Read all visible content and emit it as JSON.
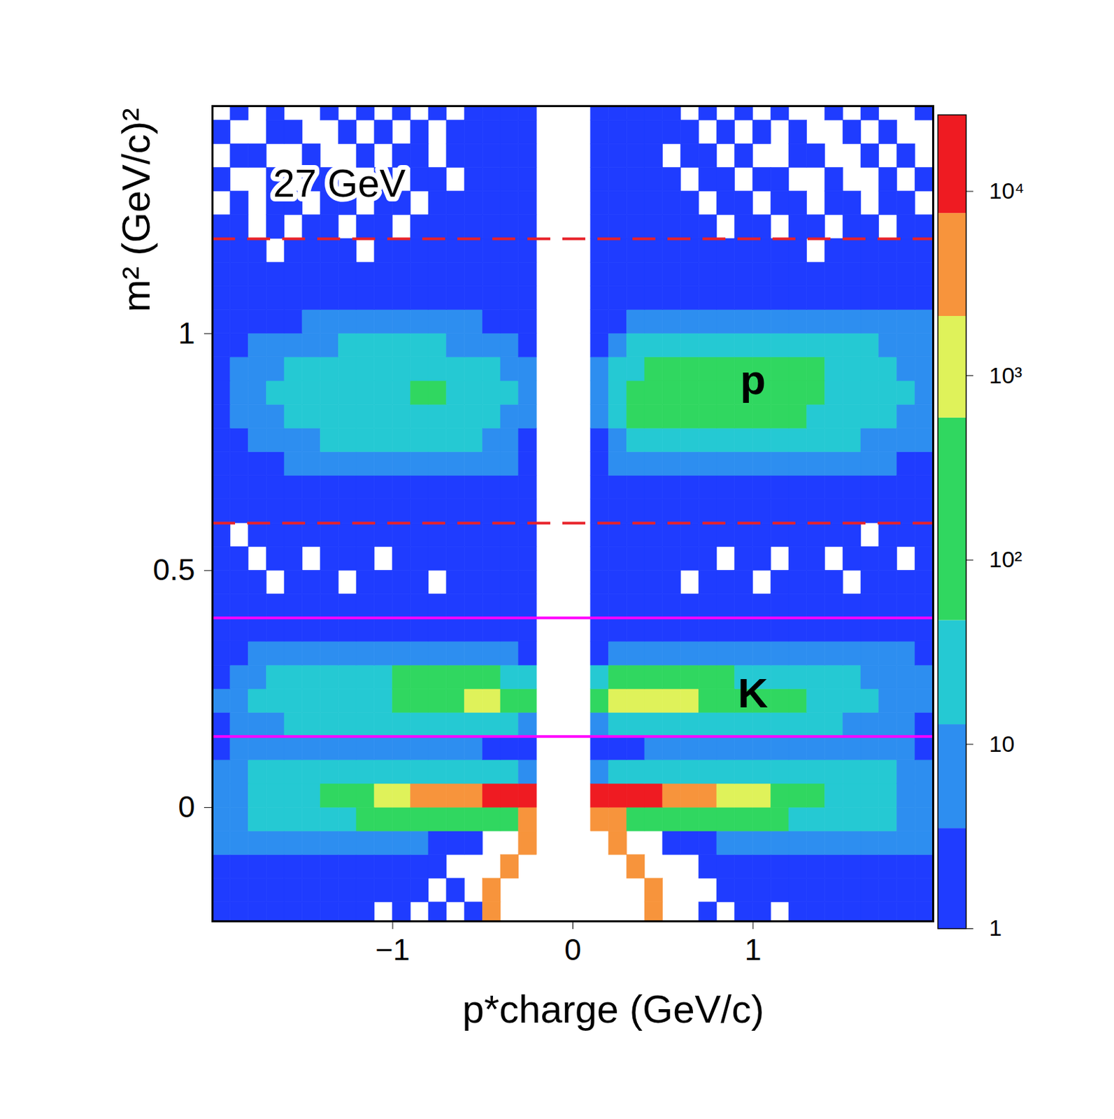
{
  "chart_data": {
    "type": "heatmap",
    "title": "27 GeV",
    "x_label": "p*charge (GeV/c)",
    "y_label": "m² (GeV/c)²",
    "xlim": [
      -2,
      2
    ],
    "xticks": [
      {
        "value": -1,
        "label": "−1"
      },
      0,
      1
    ],
    "ylim": [
      -0.24,
      1.48
    ],
    "yticks": [
      0,
      0.5,
      1
    ],
    "x_bins": [
      -2,
      -1.9,
      -1.8,
      -1.7,
      -1.6,
      -1.5,
      -1.4,
      -1.3,
      -1.2,
      -1.1,
      -1,
      -0.9,
      -0.8,
      -0.7,
      -0.6,
      -0.5,
      -0.4,
      -0.3,
      -0.2,
      -0.1,
      0,
      0.1,
      0.2,
      0.3,
      0.4,
      0.5,
      0.6,
      0.7,
      0.8,
      0.9,
      1,
      1.1,
      1.2,
      1.3,
      1.4,
      1.5,
      1.6,
      1.7,
      1.8,
      1.9,
      2
    ],
    "y_bins": [
      -0.25,
      -0.2,
      -0.15,
      -0.1,
      -0.05,
      0,
      0.05,
      0.1,
      0.15,
      0.2,
      0.25,
      0.3,
      0.35,
      0.4,
      0.45,
      0.5,
      0.55,
      0.6,
      0.65,
      0.7,
      0.75,
      0.8,
      0.85,
      0.9,
      0.95,
      1,
      1.05,
      1.1,
      1.15,
      1.2,
      1.25,
      1.3,
      1.35,
      1.4,
      1.45,
      1.5
    ],
    "counts": [
      [
        1,
        1,
        2,
        1,
        1,
        2,
        1,
        1,
        1,
        0,
        1,
        0,
        1,
        0,
        1,
        2500,
        0,
        0,
        0,
        0,
        0,
        0,
        0,
        0,
        2500,
        0,
        0,
        1,
        0,
        1,
        1,
        0,
        1,
        1,
        1,
        2,
        1,
        1,
        2,
        1
      ],
      [
        1,
        2,
        1,
        2,
        2,
        1,
        2,
        1,
        1,
        1,
        1,
        1,
        0,
        1,
        0,
        2500,
        0,
        0,
        0,
        0,
        0,
        0,
        0,
        0,
        2500,
        0,
        0,
        0,
        1,
        1,
        1,
        1,
        2,
        1,
        2,
        1,
        2,
        2,
        1,
        2
      ],
      [
        2,
        2,
        3,
        3,
        3,
        3,
        2,
        2,
        2,
        2,
        1,
        1,
        1,
        0,
        0,
        0,
        2500,
        0,
        0,
        0,
        0,
        0,
        0,
        2500,
        0,
        0,
        0,
        1,
        1,
        1,
        2,
        2,
        2,
        2,
        3,
        3,
        3,
        2,
        2,
        2
      ],
      [
        4,
        5,
        6,
        7,
        7,
        8,
        8,
        8,
        7,
        6,
        5,
        4,
        3,
        2,
        1,
        0,
        0,
        2500,
        0,
        0,
        0,
        0,
        2500,
        0,
        0,
        1,
        2,
        3,
        4,
        5,
        6,
        7,
        8,
        8,
        8,
        7,
        7,
        6,
        5,
        4
      ],
      [
        6,
        10,
        15,
        20,
        25,
        30,
        40,
        45,
        50,
        55,
        60,
        70,
        80,
        100,
        120,
        150,
        200,
        3000,
        0,
        0,
        0,
        3000,
        3000,
        200,
        150,
        120,
        100,
        80,
        70,
        60,
        55,
        50,
        45,
        40,
        30,
        25,
        20,
        15,
        10,
        6
      ],
      [
        8,
        12,
        18,
        25,
        35,
        45,
        80,
        200,
        400,
        800,
        1500,
        2500,
        3500,
        5000,
        7000,
        12000,
        16000,
        18000,
        0,
        0,
        0,
        18000,
        17000,
        14000,
        10000,
        7000,
        5000,
        3500,
        2000,
        1500,
        1000,
        500,
        300,
        150,
        45,
        35,
        25,
        18,
        12,
        8
      ],
      [
        8,
        12,
        18,
        24,
        30,
        35,
        40,
        45,
        45,
        45,
        40,
        38,
        35,
        30,
        25,
        20,
        15,
        10,
        0,
        0,
        0,
        10,
        15,
        20,
        25,
        30,
        35,
        40,
        45,
        45,
        45,
        45,
        40,
        35,
        30,
        25,
        20,
        15,
        12,
        8
      ],
      [
        3,
        4,
        5,
        6,
        6,
        7,
        7,
        7,
        6,
        6,
        6,
        5,
        5,
        4,
        4,
        3,
        3,
        2,
        0,
        0,
        0,
        2,
        3,
        3,
        4,
        4,
        5,
        5,
        6,
        6,
        6,
        7,
        7,
        7,
        7,
        6,
        6,
        5,
        4,
        3
      ],
      [
        3,
        5,
        8,
        12,
        16,
        20,
        24,
        28,
        30,
        32,
        34,
        34,
        34,
        32,
        30,
        28,
        24,
        12,
        0,
        0,
        0,
        12,
        28,
        30,
        32,
        34,
        34,
        34,
        32,
        30,
        28,
        26,
        22,
        18,
        15,
        12,
        9,
        7,
        5,
        3
      ],
      [
        4,
        8,
        14,
        20,
        26,
        32,
        36,
        40,
        42,
        45,
        55,
        160,
        200,
        250,
        700,
        900,
        500,
        300,
        0,
        0,
        0,
        400,
        1000,
        900,
        800,
        700,
        600,
        300,
        250,
        200,
        160,
        120,
        60,
        40,
        30,
        22,
        16,
        12,
        8,
        5
      ],
      [
        3,
        6,
        10,
        16,
        22,
        28,
        30,
        35,
        40,
        45,
        50,
        60,
        70,
        80,
        80,
        60,
        40,
        30,
        0,
        0,
        0,
        30,
        80,
        80,
        75,
        70,
        60,
        55,
        50,
        45,
        40,
        35,
        28,
        22,
        18,
        14,
        10,
        7,
        5,
        4
      ],
      [
        2,
        3,
        4,
        5,
        5,
        6,
        6,
        6,
        6,
        6,
        6,
        6,
        6,
        6,
        5,
        5,
        4,
        3,
        0,
        0,
        0,
        3,
        4,
        5,
        6,
        6,
        6,
        6,
        6,
        6,
        6,
        6,
        6,
        6,
        6,
        6,
        5,
        5,
        4,
        3
      ],
      [
        1,
        2,
        2,
        2,
        2,
        2,
        2,
        2,
        2,
        2,
        2,
        2,
        2,
        2,
        2,
        2,
        2,
        2,
        0,
        0,
        0,
        2,
        2,
        2,
        2,
        2,
        2,
        2,
        2,
        2,
        2,
        2,
        2,
        2,
        2,
        2,
        2,
        2,
        2,
        2
      ],
      [
        1,
        1,
        1,
        1,
        1,
        1,
        1,
        1,
        1,
        1,
        1,
        1,
        1,
        1,
        2,
        2,
        2,
        2,
        0,
        0,
        0,
        2,
        2,
        2,
        2,
        1,
        1,
        1,
        1,
        1,
        1,
        1,
        1,
        1,
        1,
        1,
        1,
        1,
        1,
        1
      ],
      [
        1,
        1,
        1,
        0,
        1,
        1,
        1,
        0,
        1,
        1,
        1,
        1,
        0,
        1,
        1,
        2,
        2,
        2,
        0,
        0,
        0,
        2,
        2,
        2,
        1,
        1,
        0,
        1,
        1,
        1,
        0,
        1,
        1,
        1,
        1,
        0,
        1,
        1,
        1,
        1
      ],
      [
        1,
        1,
        0,
        1,
        1,
        0,
        1,
        1,
        1,
        0,
        1,
        1,
        1,
        1,
        1,
        2,
        2,
        2,
        0,
        0,
        0,
        2,
        2,
        2,
        1,
        1,
        1,
        1,
        0,
        1,
        1,
        0,
        1,
        1,
        0,
        1,
        1,
        1,
        0,
        1
      ],
      [
        1,
        0,
        1,
        1,
        1,
        1,
        1,
        1,
        1,
        1,
        1,
        1,
        1,
        1,
        2,
        2,
        2,
        2,
        0,
        0,
        0,
        2,
        2,
        2,
        2,
        1,
        1,
        1,
        1,
        1,
        1,
        1,
        1,
        1,
        1,
        1,
        0,
        1,
        1,
        1
      ],
      [
        1,
        1,
        1,
        1,
        2,
        1,
        1,
        2,
        1,
        1,
        2,
        1,
        2,
        1,
        2,
        2,
        2,
        2,
        0,
        0,
        0,
        2,
        2,
        2,
        2,
        1,
        2,
        1,
        2,
        1,
        2,
        1,
        2,
        1,
        1,
        2,
        1,
        1,
        2,
        1
      ],
      [
        1,
        1,
        2,
        2,
        2,
        2,
        2,
        2,
        2,
        2,
        2,
        2,
        2,
        2,
        2,
        2,
        2,
        2,
        0,
        0,
        0,
        2,
        2,
        2,
        2,
        2,
        2,
        3,
        2,
        2,
        2,
        2,
        2,
        2,
        2,
        2,
        2,
        2,
        2,
        1
      ],
      [
        2,
        2,
        3,
        3,
        4,
        5,
        5,
        6,
        6,
        6,
        7,
        7,
        6,
        6,
        5,
        5,
        4,
        2,
        0,
        0,
        0,
        2,
        4,
        7,
        8,
        8,
        9,
        9,
        9,
        8,
        8,
        7,
        7,
        6,
        6,
        5,
        5,
        4,
        3,
        3
      ],
      [
        2,
        3,
        5,
        7,
        9,
        12,
        14,
        16,
        18,
        18,
        20,
        20,
        18,
        16,
        13,
        10,
        7,
        3,
        0,
        0,
        0,
        3,
        10,
        20,
        25,
        30,
        32,
        32,
        32,
        30,
        28,
        25,
        22,
        20,
        18,
        15,
        12,
        10,
        7,
        5
      ],
      [
        3,
        5,
        8,
        12,
        15,
        20,
        24,
        28,
        32,
        34,
        36,
        38,
        36,
        30,
        24,
        18,
        10,
        4,
        0,
        0,
        0,
        5,
        15,
        50,
        90,
        110,
        120,
        120,
        110,
        100,
        90,
        80,
        60,
        45,
        35,
        28,
        22,
        16,
        12,
        8
      ],
      [
        3,
        6,
        9,
        14,
        18,
        22,
        28,
        32,
        38,
        42,
        45,
        50,
        48,
        40,
        30,
        22,
        14,
        4,
        0,
        0,
        0,
        6,
        20,
        70,
        120,
        140,
        150,
        150,
        150,
        140,
        130,
        110,
        90,
        70,
        45,
        35,
        28,
        20,
        14,
        9
      ],
      [
        3,
        5,
        8,
        12,
        16,
        20,
        25,
        28,
        30,
        32,
        34,
        34,
        32,
        30,
        25,
        20,
        12,
        4,
        0,
        0,
        0,
        5,
        15,
        40,
        80,
        100,
        110,
        110,
        110,
        110,
        100,
        90,
        80,
        60,
        40,
        30,
        25,
        18,
        12,
        8
      ],
      [
        2,
        3,
        5,
        6,
        8,
        10,
        12,
        14,
        15,
        15,
        15,
        15,
        14,
        12,
        10,
        8,
        6,
        3,
        0,
        0,
        0,
        3,
        8,
        16,
        20,
        25,
        28,
        30,
        30,
        30,
        30,
        30,
        28,
        26,
        22,
        18,
        14,
        10,
        8,
        6
      ],
      [
        2,
        2,
        3,
        3,
        3,
        4,
        5,
        5,
        5,
        5,
        5,
        5,
        5,
        4,
        4,
        3,
        3,
        2,
        0,
        0,
        0,
        2,
        3,
        5,
        6,
        6,
        6,
        6,
        6,
        6,
        6,
        6,
        6,
        6,
        6,
        6,
        6,
        5,
        5,
        4
      ],
      [
        1,
        2,
        1,
        2,
        1,
        2,
        2,
        1,
        2,
        2,
        2,
        2,
        2,
        2,
        2,
        2,
        2,
        2,
        0,
        0,
        0,
        2,
        2,
        2,
        2,
        2,
        2,
        2,
        3,
        2,
        3,
        2,
        3,
        2,
        3,
        2,
        2,
        3,
        2,
        2
      ],
      [
        1,
        1,
        1,
        1,
        1,
        1,
        1,
        1,
        1,
        1,
        1,
        1,
        1,
        2,
        2,
        2,
        2,
        2,
        0,
        0,
        0,
        2,
        2,
        2,
        2,
        2,
        1,
        2,
        1,
        2,
        1,
        2,
        1,
        2,
        1,
        2,
        1,
        1,
        1,
        1
      ],
      [
        1,
        1,
        1,
        0,
        1,
        1,
        1,
        1,
        0,
        1,
        1,
        1,
        1,
        1,
        2,
        2,
        2,
        2,
        0,
        0,
        0,
        2,
        2,
        2,
        2,
        1,
        1,
        1,
        1,
        1,
        1,
        1,
        1,
        0,
        1,
        1,
        1,
        1,
        1,
        1
      ],
      [
        1,
        1,
        0,
        1,
        0,
        1,
        1,
        0,
        1,
        1,
        0,
        1,
        1,
        1,
        1,
        2,
        2,
        2,
        0,
        0,
        0,
        2,
        2,
        1,
        2,
        1,
        1,
        1,
        0,
        1,
        1,
        0,
        1,
        1,
        0,
        1,
        1,
        0,
        1,
        1
      ],
      [
        0,
        1,
        0,
        1,
        1,
        0,
        1,
        1,
        0,
        1,
        1,
        0,
        1,
        1,
        2,
        1,
        2,
        2,
        0,
        0,
        0,
        2,
        2,
        2,
        1,
        1,
        1,
        0,
        1,
        1,
        0,
        1,
        1,
        0,
        1,
        1,
        0,
        1,
        1,
        0
      ],
      [
        1,
        0,
        0,
        1,
        0,
        1,
        1,
        0,
        0,
        1,
        0,
        1,
        1,
        0,
        1,
        2,
        2,
        2,
        0,
        0,
        0,
        2,
        2,
        1,
        1,
        2,
        0,
        1,
        1,
        0,
        1,
        1,
        0,
        0,
        1,
        0,
        0,
        1,
        0,
        1
      ],
      [
        0,
        1,
        1,
        0,
        0,
        1,
        0,
        0,
        1,
        0,
        1,
        1,
        0,
        1,
        2,
        2,
        1,
        2,
        0,
        0,
        0,
        2,
        1,
        2,
        2,
        0,
        1,
        1,
        0,
        1,
        0,
        0,
        1,
        1,
        0,
        0,
        1,
        0,
        1,
        0
      ],
      [
        1,
        0,
        0,
        1,
        1,
        0,
        0,
        1,
        0,
        1,
        0,
        1,
        0,
        1,
        1,
        2,
        2,
        1,
        0,
        0,
        0,
        1,
        2,
        2,
        1,
        1,
        1,
        0,
        1,
        0,
        1,
        0,
        1,
        0,
        0,
        1,
        0,
        1,
        0,
        0
      ],
      [
        0,
        1,
        0,
        1,
        0,
        0,
        1,
        0,
        1,
        0,
        1,
        0,
        1,
        0,
        2,
        1,
        2,
        2,
        0,
        0,
        0,
        2,
        2,
        1,
        2,
        1,
        0,
        1,
        0,
        1,
        0,
        1,
        0,
        0,
        1,
        0,
        1,
        0,
        0,
        1
      ]
    ],
    "colorbar": {
      "range": [
        1,
        26000
      ],
      "ticks": [
        1,
        10,
        {
          "value": 100,
          "label": "10²"
        },
        {
          "value": 1000,
          "label": "10³"
        },
        {
          "value": 10000,
          "label": "10⁴"
        }
      ],
      "levels": [
        3.5,
        12.8,
        47,
        590,
        2100,
        7600
      ],
      "colors": [
        "#1f3cff",
        "#2d8ef0",
        "#25c9d3",
        "#30d760",
        "#dff25a",
        "#f7943c",
        "#ef1b22"
      ]
    },
    "hlines": [
      {
        "value": 1.2,
        "color": "#e8222a",
        "line_style": "dashed"
      },
      {
        "value": 0.6,
        "color": "#e8222a",
        "line_style": "dashed"
      },
      {
        "value": 0.4,
        "color": "#ff00ff",
        "line_style": "solid"
      },
      {
        "value": 0.15,
        "color": "#ff00ff",
        "line_style": "solid"
      }
    ],
    "annotations": [
      {
        "text": "p",
        "x": 1.0,
        "y": 0.9
      },
      {
        "text": "K",
        "x": 1.0,
        "y": 0.24
      }
    ]
  }
}
